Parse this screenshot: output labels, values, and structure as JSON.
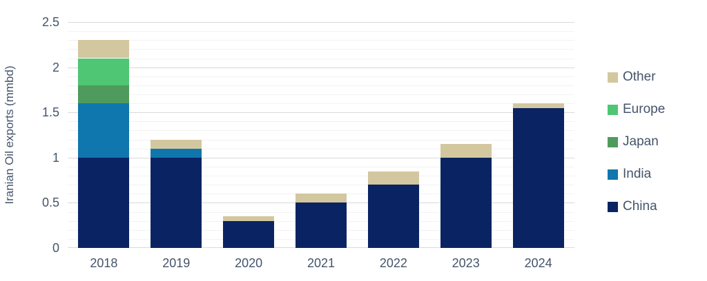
{
  "chart_data": {
    "type": "bar",
    "stacked": true,
    "title": "",
    "xlabel": "",
    "ylabel": "Iranian Oil exports (mmbd)",
    "categories": [
      "2018",
      "2019",
      "2020",
      "2021",
      "2022",
      "2023",
      "2024"
    ],
    "series": [
      {
        "name": "China",
        "color": "#0A2463",
        "values": [
          1.0,
          1.0,
          0.3,
          0.5,
          0.7,
          1.0,
          1.55
        ]
      },
      {
        "name": "India",
        "color": "#0F77AD",
        "values": [
          0.6,
          0.1,
          0,
          0,
          0,
          0,
          0
        ]
      },
      {
        "name": "Japan",
        "color": "#4F9B5D",
        "values": [
          0.2,
          0,
          0,
          0,
          0,
          0,
          0
        ]
      },
      {
        "name": "Europe",
        "color": "#4FC674",
        "values": [
          0.3,
          0,
          0,
          0,
          0,
          0,
          0
        ]
      },
      {
        "name": "Other",
        "color": "#D3C79F",
        "values": [
          0.2,
          0.1,
          0.05,
          0.1,
          0.15,
          0.15,
          0.05
        ]
      }
    ],
    "totals": [
      2.3,
      1.2,
      0.35,
      0.6,
      0.85,
      1.15,
      1.6
    ],
    "ylim": [
      0,
      2.5
    ],
    "yticks": [
      {
        "label": "0",
        "value": 0
      },
      {
        "label": "0.5",
        "value": 0.5
      },
      {
        "label": "1",
        "value": 1
      },
      {
        "label": "1.5",
        "value": 1.5
      },
      {
        "label": "2",
        "value": 2
      },
      {
        "label": "2.5",
        "value": 2.5
      }
    ],
    "minor_grid_step": 0.1,
    "major_grid_step": 0.5,
    "grid": true,
    "legend": {
      "position": "right",
      "entries": [
        "Other",
        "Europe",
        "Japan",
        "India",
        "China"
      ]
    },
    "colors": {
      "text": "#44546A",
      "grid_minor": "#F2F2F2",
      "grid_major": "#D9D9D9",
      "background": "#FFFFFF"
    }
  }
}
